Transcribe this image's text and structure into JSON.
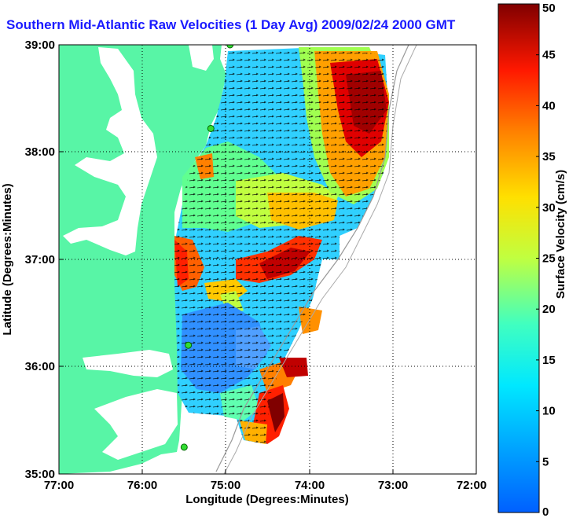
{
  "title": "Southern Mid-Atlantic Raw Velocities (1 Day Avg) 2009/02/24 2000 GMT",
  "map": {
    "xlabel": "Longitude (Degrees:Minutes)",
    "ylabel": "Latitude (Degrees:Minutes)",
    "lon_ticks": [
      "77:00",
      "76:00",
      "75:00",
      "74:00",
      "73:00",
      "72:00"
    ],
    "lat_ticks": [
      "39:00",
      "38:00",
      "37:00",
      "36:00",
      "35:00"
    ],
    "lon_range": [
      -77,
      -72
    ],
    "lat_range": [
      35,
      39
    ],
    "land_color": "#58f5a6",
    "grid": "dotted"
  },
  "colorbar": {
    "label": "Surface Velocity (cm/s)",
    "ticks": [
      "0",
      "5",
      "10",
      "15",
      "20",
      "25",
      "30",
      "35",
      "40",
      "45",
      "50"
    ],
    "range": [
      0,
      50
    ],
    "colormap": "jet"
  },
  "stations": [
    {
      "lon": -74.95,
      "lat": 39.0
    },
    {
      "lon": -75.18,
      "lat": 38.22
    },
    {
      "lon": -75.45,
      "lat": 36.2
    },
    {
      "lon": -75.5,
      "lat": 35.25
    }
  ]
}
